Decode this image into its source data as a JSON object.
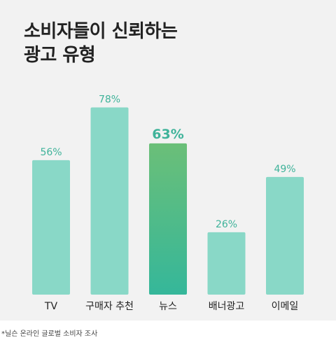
{
  "title_lines": [
    "소비자들이 신뢰하는",
    "광고 유형"
  ],
  "footnote": "*닐슨 온라인 글로벌 소비자 조사",
  "colors": {
    "bar": "#89d8c7",
    "highlight_top": "#6bbf78",
    "highlight_bottom": "#35b79a",
    "label": "#3fb39a",
    "category": "#222222"
  },
  "chart_data": {
    "type": "bar",
    "categories": [
      "TV",
      "구매자 추천",
      "뉴스",
      "배너광고",
      "이메일"
    ],
    "values": [
      56,
      78,
      63,
      26,
      49
    ],
    "value_labels": [
      "56%",
      "78%",
      "63%",
      "26%",
      "49%"
    ],
    "highlight_index": 2,
    "ylim": [
      0,
      100
    ],
    "grid": false,
    "legend": "none"
  }
}
